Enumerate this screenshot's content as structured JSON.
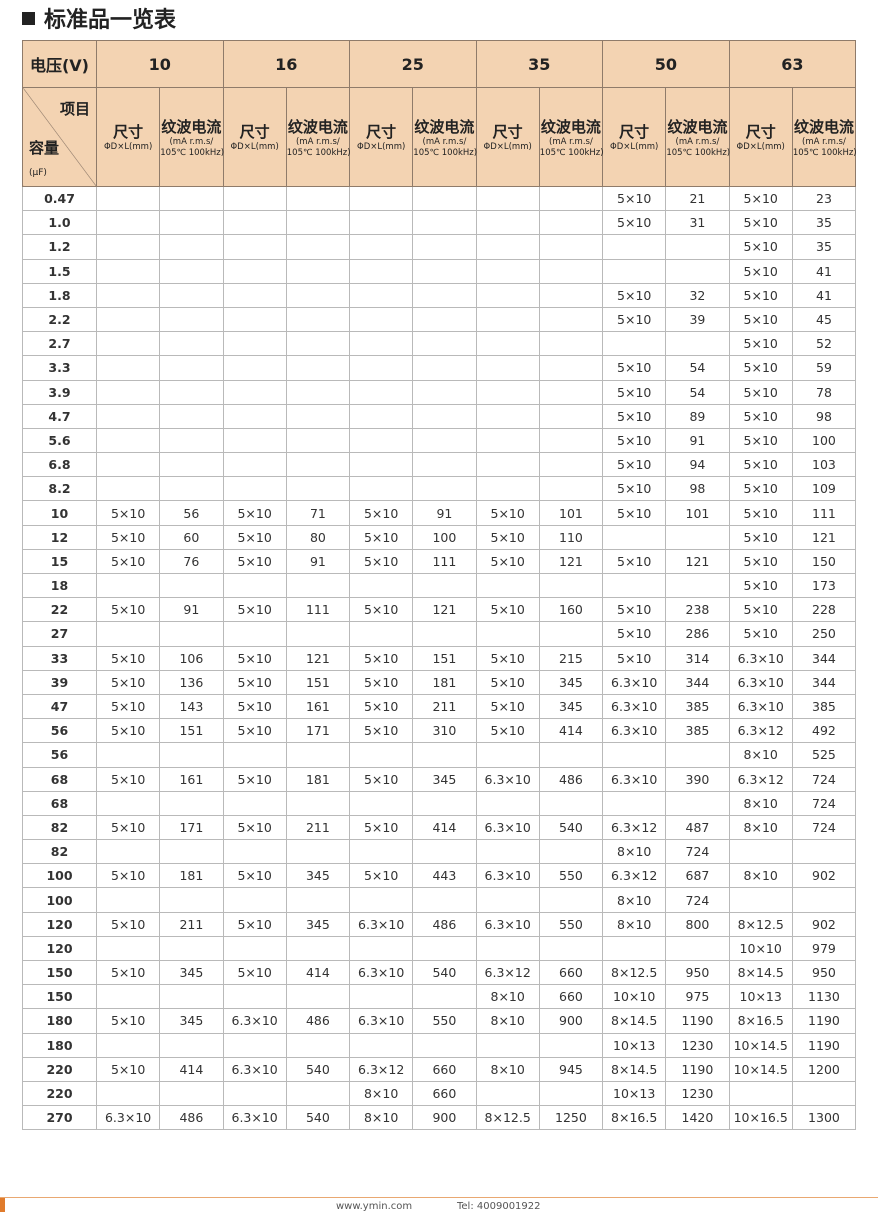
{
  "title": "标准品一览表",
  "header": {
    "voltage_label": "电压(V)",
    "voltages": [
      "10",
      "16",
      "25",
      "35",
      "50",
      "63"
    ],
    "item_label": "项目",
    "capacity_label": "容量",
    "capacity_unit": "(μF)",
    "size_label": "尺寸",
    "size_unit": "ΦD×L(mm)",
    "ripple_label": "纹波电流",
    "ripple_unit1": "(mA r.m.s/",
    "ripple_unit2": "105℃ 100kHz)"
  },
  "rows": [
    [
      "0.47",
      "",
      "",
      "",
      "",
      "",
      "",
      "",
      "",
      "5×10",
      "21",
      "5×10",
      "23"
    ],
    [
      "1.0",
      "",
      "",
      "",
      "",
      "",
      "",
      "",
      "",
      "5×10",
      "31",
      "5×10",
      "35"
    ],
    [
      "1.2",
      "",
      "",
      "",
      "",
      "",
      "",
      "",
      "",
      "",
      "",
      "5×10",
      "35"
    ],
    [
      "1.5",
      "",
      "",
      "",
      "",
      "",
      "",
      "",
      "",
      "",
      "",
      "5×10",
      "41"
    ],
    [
      "1.8",
      "",
      "",
      "",
      "",
      "",
      "",
      "",
      "",
      "5×10",
      "32",
      "5×10",
      "41"
    ],
    [
      "2.2",
      "",
      "",
      "",
      "",
      "",
      "",
      "",
      "",
      "5×10",
      "39",
      "5×10",
      "45"
    ],
    [
      "2.7",
      "",
      "",
      "",
      "",
      "",
      "",
      "",
      "",
      "",
      "",
      "5×10",
      "52"
    ],
    [
      "3.3",
      "",
      "",
      "",
      "",
      "",
      "",
      "",
      "",
      "5×10",
      "54",
      "5×10",
      "59"
    ],
    [
      "3.9",
      "",
      "",
      "",
      "",
      "",
      "",
      "",
      "",
      "5×10",
      "54",
      "5×10",
      "78"
    ],
    [
      "4.7",
      "",
      "",
      "",
      "",
      "",
      "",
      "",
      "",
      "5×10",
      "89",
      "5×10",
      "98"
    ],
    [
      "5.6",
      "",
      "",
      "",
      "",
      "",
      "",
      "",
      "",
      "5×10",
      "91",
      "5×10",
      "100"
    ],
    [
      "6.8",
      "",
      "",
      "",
      "",
      "",
      "",
      "",
      "",
      "5×10",
      "94",
      "5×10",
      "103"
    ],
    [
      "8.2",
      "",
      "",
      "",
      "",
      "",
      "",
      "",
      "",
      "5×10",
      "98",
      "5×10",
      "109"
    ],
    [
      "10",
      "5×10",
      "56",
      "5×10",
      "71",
      "5×10",
      "91",
      "5×10",
      "101",
      "5×10",
      "101",
      "5×10",
      "111"
    ],
    [
      "12",
      "5×10",
      "60",
      "5×10",
      "80",
      "5×10",
      "100",
      "5×10",
      "110",
      "",
      "",
      "5×10",
      "121"
    ],
    [
      "15",
      "5×10",
      "76",
      "5×10",
      "91",
      "5×10",
      "111",
      "5×10",
      "121",
      "5×10",
      "121",
      "5×10",
      "150"
    ],
    [
      "18",
      "",
      "",
      "",
      "",
      "",
      "",
      "",
      "",
      "",
      "",
      "5×10",
      "173"
    ],
    [
      "22",
      "5×10",
      "91",
      "5×10",
      "111",
      "5×10",
      "121",
      "5×10",
      "160",
      "5×10",
      "238",
      "5×10",
      "228"
    ],
    [
      "27",
      "",
      "",
      "",
      "",
      "",
      "",
      "",
      "",
      "5×10",
      "286",
      "5×10",
      "250"
    ],
    [
      "33",
      "5×10",
      "106",
      "5×10",
      "121",
      "5×10",
      "151",
      "5×10",
      "215",
      "5×10",
      "314",
      "6.3×10",
      "344"
    ],
    [
      "39",
      "5×10",
      "136",
      "5×10",
      "151",
      "5×10",
      "181",
      "5×10",
      "345",
      "6.3×10",
      "344",
      "6.3×10",
      "344"
    ],
    [
      "47",
      "5×10",
      "143",
      "5×10",
      "161",
      "5×10",
      "211",
      "5×10",
      "345",
      "6.3×10",
      "385",
      "6.3×10",
      "385"
    ],
    [
      "56",
      "5×10",
      "151",
      "5×10",
      "171",
      "5×10",
      "310",
      "5×10",
      "414",
      "6.3×10",
      "385",
      "6.3×12",
      "492"
    ],
    [
      "56",
      "",
      "",
      "",
      "",
      "",
      "",
      "",
      "",
      "",
      "",
      "8×10",
      "525"
    ],
    [
      "68",
      "5×10",
      "161",
      "5×10",
      "181",
      "5×10",
      "345",
      "6.3×10",
      "486",
      "6.3×10",
      "390",
      "6.3×12",
      "724"
    ],
    [
      "68",
      "",
      "",
      "",
      "",
      "",
      "",
      "",
      "",
      "",
      "",
      "8×10",
      "724"
    ],
    [
      "82",
      "5×10",
      "171",
      "5×10",
      "211",
      "5×10",
      "414",
      "6.3×10",
      "540",
      "6.3×12",
      "487",
      "8×10",
      "724"
    ],
    [
      "82",
      "",
      "",
      "",
      "",
      "",
      "",
      "",
      "",
      "8×10",
      "724",
      "",
      ""
    ],
    [
      "100",
      "5×10",
      "181",
      "5×10",
      "345",
      "5×10",
      "443",
      "6.3×10",
      "550",
      "6.3×12",
      "687",
      "8×10",
      "902"
    ],
    [
      "100",
      "",
      "",
      "",
      "",
      "",
      "",
      "",
      "",
      "8×10",
      "724",
      "",
      ""
    ],
    [
      "120",
      "5×10",
      "211",
      "5×10",
      "345",
      "6.3×10",
      "486",
      "6.3×10",
      "550",
      "8×10",
      "800",
      "8×12.5",
      "902"
    ],
    [
      "120",
      "",
      "",
      "",
      "",
      "",
      "",
      "",
      "",
      "",
      "",
      "10×10",
      "979"
    ],
    [
      "150",
      "5×10",
      "345",
      "5×10",
      "414",
      "6.3×10",
      "540",
      "6.3×12",
      "660",
      "8×12.5",
      "950",
      "8×14.5",
      "950"
    ],
    [
      "150",
      "",
      "",
      "",
      "",
      "",
      "",
      "8×10",
      "660",
      "10×10",
      "975",
      "10×13",
      "1130"
    ],
    [
      "180",
      "5×10",
      "345",
      "6.3×10",
      "486",
      "6.3×10",
      "550",
      "8×10",
      "900",
      "8×14.5",
      "1190",
      "8×16.5",
      "1190"
    ],
    [
      "180",
      "",
      "",
      "",
      "",
      "",
      "",
      "",
      "",
      "10×13",
      "1230",
      "10×14.5",
      "1190"
    ],
    [
      "220",
      "5×10",
      "414",
      "6.3×10",
      "540",
      "6.3×12",
      "660",
      "8×10",
      "945",
      "8×14.5",
      "1190",
      "10×14.5",
      "1200"
    ],
    [
      "220",
      "",
      "",
      "",
      "",
      "8×10",
      "660",
      "",
      "",
      "10×13",
      "1230",
      "",
      ""
    ],
    [
      "270",
      "6.3×10",
      "486",
      "6.3×10",
      "540",
      "8×10",
      "900",
      "8×12.5",
      "1250",
      "8×16.5",
      "1420",
      "10×16.5",
      "1300"
    ]
  ],
  "footer": {
    "website": "www.ymin.com",
    "tel": "Tel:  4009001922"
  },
  "colors": {
    "header_bg": "#f3d3b2",
    "accent": "#e07b2c"
  }
}
